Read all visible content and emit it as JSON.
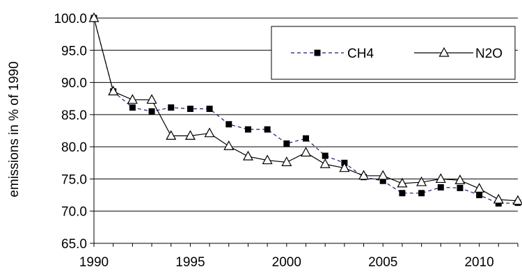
{
  "chart_data": {
    "type": "line",
    "title": "",
    "xlabel": "",
    "ylabel": "emissions in % of 1990",
    "xlim": [
      1990,
      2012
    ],
    "ylim": [
      65.0,
      100.0
    ],
    "x_ticks": [
      "1990",
      "1995",
      "2000",
      "2005",
      "2010"
    ],
    "y_ticks": [
      "65.0",
      "70.0",
      "75.0",
      "80.0",
      "85.0",
      "90.0",
      "95.0",
      "100.0"
    ],
    "grid": "horizontal",
    "legend_position": "top-right",
    "x": [
      1990,
      1991,
      1992,
      1993,
      1994,
      1995,
      1996,
      1997,
      1998,
      1999,
      2000,
      2001,
      2002,
      2003,
      2004,
      2005,
      2006,
      2007,
      2008,
      2009,
      2010,
      2011,
      2012
    ],
    "series": [
      {
        "name": "CH4",
        "marker": "filled-square",
        "line_style": "dashed",
        "color": "#1a1a6e",
        "values": [
          100.0,
          88.6,
          86.1,
          85.5,
          86.1,
          85.9,
          85.9,
          83.5,
          82.7,
          82.7,
          80.5,
          81.3,
          78.6,
          77.5,
          75.3,
          74.7,
          72.8,
          72.8,
          73.7,
          73.6,
          72.5,
          71.2,
          71.3
        ]
      },
      {
        "name": "N2O",
        "marker": "open-triangle",
        "line_style": "solid",
        "color": "#000000",
        "values": [
          100.0,
          88.6,
          87.3,
          87.3,
          81.7,
          81.7,
          82.1,
          80.1,
          78.5,
          77.9,
          77.6,
          79.1,
          77.3,
          76.7,
          75.5,
          75.5,
          74.3,
          74.5,
          75.0,
          74.8,
          73.5,
          71.8,
          71.6
        ]
      }
    ]
  }
}
